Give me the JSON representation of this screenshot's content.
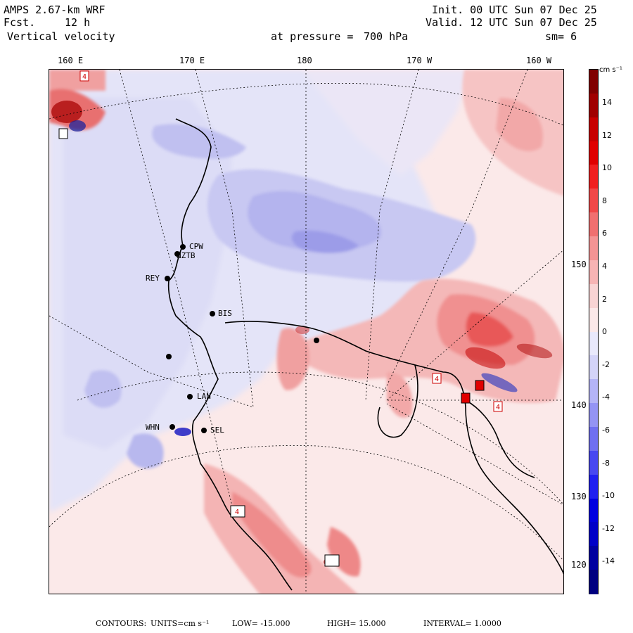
{
  "header": {
    "model": "AMPS 2.67-km WRF",
    "fcst_label": "Fcst.",
    "fcst_value": "12 h",
    "field": "Vertical velocity",
    "pressure_label": "at pressure =",
    "pressure_value": "700 hPa",
    "init": "Init. 00 UTC Sun 07 Dec 25",
    "valid": "Valid. 12 UTC Sun 07 Dec 25",
    "smoothing": "sm= 6"
  },
  "map": {
    "longitude_labels": [
      "160 E",
      "170 E",
      "180",
      "170 W",
      "160 W"
    ],
    "latitude_labels": [
      "150 W",
      "140 W",
      "130 W",
      "120 W"
    ],
    "stations": [
      "CPW",
      "NZTB",
      "REY",
      "BIS",
      "LAN",
      "WHN",
      "SEL"
    ],
    "box_label": "4"
  },
  "colorbar": {
    "units": "cm s⁻¹",
    "ticks": [
      "14",
      "12",
      "10",
      "8",
      "6",
      "4",
      "2",
      "0",
      "-2",
      "-4",
      "-6",
      "-8",
      "-10",
      "-12",
      "-14"
    ],
    "colors_top_to_bottom": [
      "#800000",
      "#a00000",
      "#c80000",
      "#e00000",
      "#f02020",
      "#f04848",
      "#f07070",
      "#f49494",
      "#f6b4b4",
      "#f8d4d4",
      "#fbe9e9",
      "#e9e9fb",
      "#d4d4f8",
      "#b4b4f6",
      "#9494f4",
      "#7070f0",
      "#4848f0",
      "#2020f0",
      "#0000e0",
      "#0000c8",
      "#0000a0",
      "#000080"
    ]
  },
  "footer": {
    "contours_label": "CONTOURS:",
    "units_text": "UNITS=cm s⁻¹",
    "low_text": "LOW= -15.000",
    "high_text": "HIGH= 15.000",
    "interval_text": "INTERVAL= 1.0000"
  }
}
